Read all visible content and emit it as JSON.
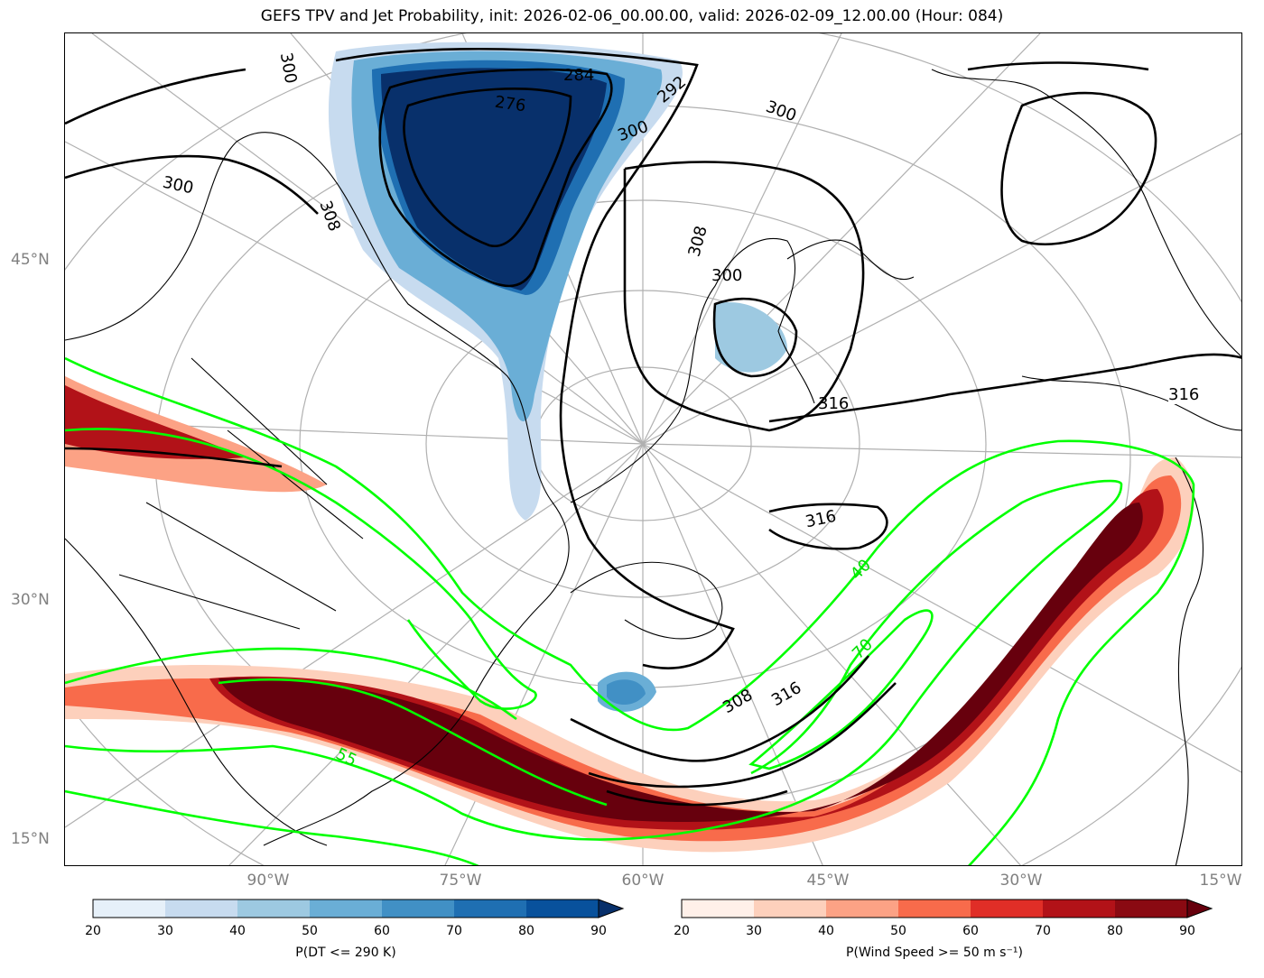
{
  "title": "GEFS TPV and Jet Probability, init: 2026-02-06_00.00.00, valid: 2026-02-09_12.00.00 (Hour: 084)",
  "lat_labels": [
    "45°N",
    "30°N",
    "15°N"
  ],
  "lon_labels": [
    "90°W",
    "75°W",
    "60°W",
    "45°W",
    "30°W",
    "15°W"
  ],
  "contour_labels": {
    "theta": [
      "300",
      "284",
      "276",
      "292",
      "300",
      "300",
      "300",
      "308",
      "308",
      "300",
      "316",
      "316",
      "316",
      "308",
      "316"
    ],
    "wind": [
      "55",
      "40",
      "70"
    ]
  },
  "colorbar_left": {
    "label": "P(DT <= 290 K)",
    "ticks": [
      "20",
      "30",
      "40",
      "50",
      "60",
      "70",
      "80",
      "90"
    ],
    "colors": [
      "#e6f0f9",
      "#c7dbef",
      "#9dc9e1",
      "#6aaed6",
      "#4190c5",
      "#1f6fb2",
      "#08519c"
    ],
    "extend_color": "#08306b"
  },
  "colorbar_right": {
    "label": "P(Wind Speed >= 50 m s⁻¹)",
    "ticks": [
      "20",
      "30",
      "40",
      "50",
      "60",
      "70",
      "80",
      "90"
    ],
    "colors": [
      "#fff0e9",
      "#fdd0bc",
      "#fca285",
      "#f86b4b",
      "#e02e27",
      "#b21218",
      "#8a0a12"
    ],
    "extend_color": "#67000d"
  },
  "colors": {
    "jet_contour": "#00ff00",
    "theta_contour": "#000000",
    "graticule": "#b0b0b0"
  }
}
